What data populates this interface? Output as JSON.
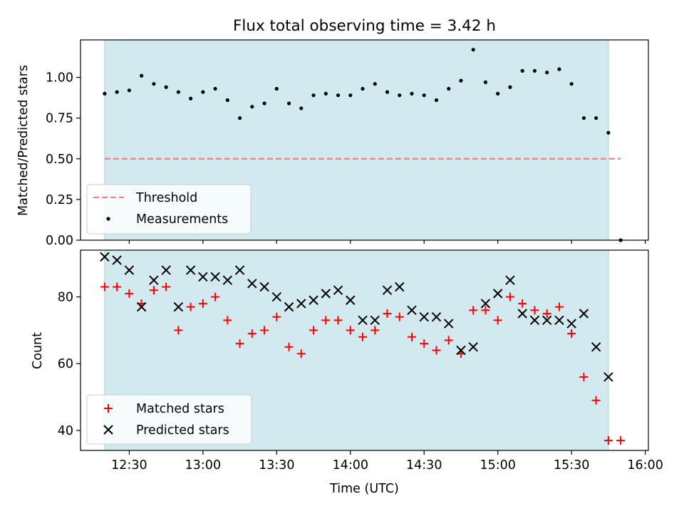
{
  "chart_data": [
    {
      "type": "scatter",
      "title": "Flux total observing time = 3.42 h",
      "xlabel": "",
      "ylabel": "Matched/Predicted stars",
      "ylim": [
        0,
        1.23
      ],
      "yticks": [
        "0.00",
        "0.25",
        "0.50",
        "0.75",
        "1.00"
      ],
      "grid": false,
      "legend": "lower-left",
      "observing_window": [
        "12:20",
        "15:45"
      ],
      "shade_color": "#d3e9f0",
      "threshold": {
        "name": "Threshold",
        "value": 0.5,
        "x": [
          "12:20",
          "15:50"
        ],
        "color": "#f08080"
      },
      "series": [
        {
          "name": "Measurements",
          "color": "#000000",
          "marker": "dot",
          "points": [
            [
              "12:20",
              0.9
            ],
            [
              "12:25",
              0.91
            ],
            [
              "12:30",
              0.92
            ],
            [
              "12:35",
              1.01
            ],
            [
              "12:40",
              0.96
            ],
            [
              "12:45",
              0.94
            ],
            [
              "12:50",
              0.91
            ],
            [
              "12:55",
              0.87
            ],
            [
              "13:00",
              0.91
            ],
            [
              "13:05",
              0.93
            ],
            [
              "13:10",
              0.86
            ],
            [
              "13:15",
              0.75
            ],
            [
              "13:20",
              0.82
            ],
            [
              "13:25",
              0.84
            ],
            [
              "13:30",
              0.93
            ],
            [
              "13:35",
              0.84
            ],
            [
              "13:40",
              0.81
            ],
            [
              "13:45",
              0.89
            ],
            [
              "13:50",
              0.9
            ],
            [
              "13:55",
              0.89
            ],
            [
              "14:00",
              0.89
            ],
            [
              "14:05",
              0.93
            ],
            [
              "14:10",
              0.96
            ],
            [
              "14:15",
              0.91
            ],
            [
              "14:20",
              0.89
            ],
            [
              "14:25",
              0.9
            ],
            [
              "14:30",
              0.89
            ],
            [
              "14:35",
              0.86
            ],
            [
              "14:40",
              0.93
            ],
            [
              "14:45",
              0.98
            ],
            [
              "14:50",
              1.17
            ],
            [
              "14:55",
              0.97
            ],
            [
              "15:00",
              0.9
            ],
            [
              "15:05",
              0.94
            ],
            [
              "15:10",
              1.04
            ],
            [
              "15:15",
              1.04
            ],
            [
              "15:20",
              1.03
            ],
            [
              "15:25",
              1.05
            ],
            [
              "15:30",
              0.96
            ],
            [
              "15:35",
              0.75
            ],
            [
              "15:40",
              0.75
            ],
            [
              "15:45",
              0.66
            ],
            [
              "15:50",
              0.0
            ]
          ]
        }
      ]
    },
    {
      "type": "scatter",
      "xlabel": "Time (UTC)",
      "ylabel": "Count",
      "ylim": [
        34,
        94
      ],
      "yticks": [
        "40",
        "60",
        "80"
      ],
      "xlim": [
        "12:10",
        "16:00"
      ],
      "xticks": [
        "12:30",
        "13:00",
        "13:30",
        "14:00",
        "14:30",
        "15:00",
        "15:30",
        "16:00"
      ],
      "grid": false,
      "legend": "lower-left",
      "observing_window": [
        "12:20",
        "15:45"
      ],
      "shade_color": "#d3e9f0",
      "series": [
        {
          "name": "Matched stars",
          "color": "#ff0000",
          "marker": "plus",
          "points": [
            [
              "12:20",
              83
            ],
            [
              "12:25",
              83
            ],
            [
              "12:30",
              81
            ],
            [
              "12:35",
              78
            ],
            [
              "12:40",
              82
            ],
            [
              "12:45",
              83
            ],
            [
              "12:50",
              70
            ],
            [
              "12:55",
              77
            ],
            [
              "13:00",
              78
            ],
            [
              "13:05",
              80
            ],
            [
              "13:10",
              73
            ],
            [
              "13:15",
              66
            ],
            [
              "13:20",
              69
            ],
            [
              "13:25",
              70
            ],
            [
              "13:30",
              74
            ],
            [
              "13:35",
              65
            ],
            [
              "13:40",
              63
            ],
            [
              "13:45",
              70
            ],
            [
              "13:50",
              73
            ],
            [
              "13:55",
              73
            ],
            [
              "14:00",
              70
            ],
            [
              "14:05",
              68
            ],
            [
              "14:10",
              70
            ],
            [
              "14:15",
              75
            ],
            [
              "14:20",
              74
            ],
            [
              "14:25",
              68
            ],
            [
              "14:30",
              66
            ],
            [
              "14:35",
              64
            ],
            [
              "14:40",
              67
            ],
            [
              "14:45",
              63
            ],
            [
              "14:50",
              76
            ],
            [
              "14:55",
              76
            ],
            [
              "15:00",
              73
            ],
            [
              "15:05",
              80
            ],
            [
              "15:10",
              78
            ],
            [
              "15:15",
              76
            ],
            [
              "15:20",
              75
            ],
            [
              "15:25",
              77
            ],
            [
              "15:30",
              69
            ],
            [
              "15:35",
              56
            ],
            [
              "15:40",
              49
            ],
            [
              "15:45",
              37
            ],
            [
              "15:50",
              37
            ]
          ]
        },
        {
          "name": "Predicted stars",
          "color": "#000000",
          "marker": "x",
          "points": [
            [
              "12:20",
              92
            ],
            [
              "12:25",
              91
            ],
            [
              "12:30",
              88
            ],
            [
              "12:35",
              77
            ],
            [
              "12:40",
              85
            ],
            [
              "12:45",
              88
            ],
            [
              "12:50",
              77
            ],
            [
              "12:55",
              88
            ],
            [
              "13:00",
              86
            ],
            [
              "13:05",
              86
            ],
            [
              "13:10",
              85
            ],
            [
              "13:15",
              88
            ],
            [
              "13:20",
              84
            ],
            [
              "13:25",
              83
            ],
            [
              "13:30",
              80
            ],
            [
              "13:35",
              77
            ],
            [
              "13:40",
              78
            ],
            [
              "13:45",
              79
            ],
            [
              "13:50",
              81
            ],
            [
              "13:55",
              82
            ],
            [
              "14:00",
              79
            ],
            [
              "14:05",
              73
            ],
            [
              "14:10",
              73
            ],
            [
              "14:15",
              82
            ],
            [
              "14:20",
              83
            ],
            [
              "14:25",
              76
            ],
            [
              "14:30",
              74
            ],
            [
              "14:35",
              74
            ],
            [
              "14:40",
              72
            ],
            [
              "14:45",
              64
            ],
            [
              "14:50",
              65
            ],
            [
              "14:55",
              78
            ],
            [
              "15:00",
              81
            ],
            [
              "15:05",
              85
            ],
            [
              "15:10",
              75
            ],
            [
              "15:15",
              73
            ],
            [
              "15:20",
              73
            ],
            [
              "15:25",
              73
            ],
            [
              "15:30",
              72
            ],
            [
              "15:35",
              75
            ],
            [
              "15:40",
              65
            ],
            [
              "15:45",
              56
            ]
          ]
        }
      ]
    }
  ]
}
